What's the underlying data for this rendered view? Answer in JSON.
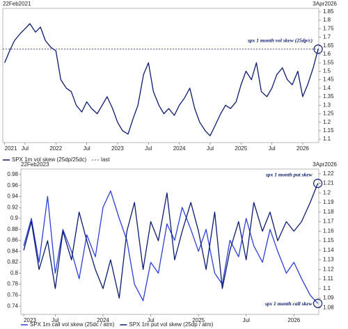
{
  "chart_data": [
    {
      "type": "line",
      "start_label": "22Feb2021",
      "end_label": "3Apr2026",
      "xlim": [
        2021.14,
        2026.26
      ],
      "xticks": [
        {
          "value": 2021.17,
          "label": "2021"
        },
        {
          "value": 2021.5,
          "label": "Jul"
        },
        2022,
        {
          "value": 2022.5,
          "label": "Jul"
        },
        2023,
        {
          "value": 2023.5,
          "label": "Jul"
        },
        2024,
        {
          "value": 2024.5,
          "label": "Jul"
        },
        2025,
        {
          "value": 2025.5,
          "label": "Jul"
        },
        2026
      ],
      "ylim": [
        1.08,
        1.87
      ],
      "yticks": [
        1.1,
        1.15,
        1.2,
        1.25,
        1.3,
        1.35,
        1.4,
        1.45,
        1.5,
        1.55,
        1.6,
        1.65,
        1.7,
        1.75,
        1.8,
        1.85
      ],
      "x": [
        2021.17,
        2021.25,
        2021.33,
        2021.42,
        2021.5,
        2021.58,
        2021.67,
        2021.75,
        2021.83,
        2021.92,
        2022.0,
        2022.08,
        2022.17,
        2022.25,
        2022.33,
        2022.42,
        2022.5,
        2022.58,
        2022.67,
        2022.75,
        2022.83,
        2022.92,
        2023.0,
        2023.08,
        2023.17,
        2023.25,
        2023.33,
        2023.42,
        2023.5,
        2023.58,
        2023.67,
        2023.75,
        2023.83,
        2023.92,
        2024.0,
        2024.08,
        2024.17,
        2024.25,
        2024.33,
        2024.42,
        2024.5,
        2024.58,
        2024.67,
        2024.75,
        2024.83,
        2024.92,
        2025.0,
        2025.08,
        2025.17,
        2025.25,
        2025.33,
        2025.42,
        2025.5,
        2025.58,
        2025.67,
        2025.75,
        2025.83,
        2025.92,
        2026.0,
        2026.08,
        2026.17,
        2026.25
      ],
      "series": [
        {
          "name": "SPX 1m vol skew (25dp/25dc)",
          "color": "#0a1a6e",
          "annotation": "spx 1 month vol skew (25dp/c)",
          "values": [
            1.55,
            1.62,
            1.68,
            1.72,
            1.75,
            1.78,
            1.73,
            1.76,
            1.68,
            1.64,
            1.62,
            1.45,
            1.4,
            1.38,
            1.3,
            1.26,
            1.32,
            1.28,
            1.25,
            1.3,
            1.35,
            1.28,
            1.2,
            1.15,
            1.13,
            1.22,
            1.3,
            1.48,
            1.55,
            1.38,
            1.3,
            1.25,
            1.28,
            1.24,
            1.3,
            1.34,
            1.4,
            1.28,
            1.2,
            1.15,
            1.12,
            1.18,
            1.25,
            1.3,
            1.28,
            1.32,
            1.42,
            1.5,
            1.45,
            1.55,
            1.38,
            1.35,
            1.4,
            1.48,
            1.52,
            1.45,
            1.42,
            1.5,
            1.35,
            1.42,
            1.52,
            1.63
          ]
        }
      ],
      "reference_line": {
        "name": "last",
        "value": 1.63,
        "color": "#0a1a6e"
      }
    },
    {
      "type": "line",
      "start_label": "22Feb2023",
      "end_label": "3Apr2026",
      "xlim": [
        2023.14,
        2026.26
      ],
      "xticks": [
        {
          "value": 2023.17,
          "label": "2023"
        },
        {
          "value": 2023.5,
          "label": "Jul"
        },
        2024,
        {
          "value": 2024.5,
          "label": "Jul"
        },
        2025,
        {
          "value": 2025.5,
          "label": "Jul"
        },
        2026
      ],
      "ylim": [
        0.725,
        0.99
      ],
      "yticks": [
        0.74,
        0.76,
        0.78,
        0.8,
        0.82,
        0.84,
        0.86,
        0.88,
        0.9,
        0.92,
        0.94,
        0.96,
        0.98
      ],
      "y2lim": [
        1.073,
        1.225
      ],
      "y2ticks": [
        1.08,
        1.09,
        1.1,
        1.11,
        1.12,
        1.13,
        1.14,
        1.15,
        1.16,
        1.17,
        1.18,
        1.19,
        1.2,
        1.21,
        1.22
      ],
      "x": [
        2023.17,
        2023.25,
        2023.33,
        2023.42,
        2023.5,
        2023.58,
        2023.67,
        2023.75,
        2023.83,
        2023.92,
        2024.0,
        2024.08,
        2024.17,
        2024.25,
        2024.33,
        2024.42,
        2024.5,
        2024.58,
        2024.67,
        2024.75,
        2024.83,
        2024.92,
        2025.0,
        2025.08,
        2025.17,
        2025.25,
        2025.33,
        2025.42,
        2025.5,
        2025.58,
        2025.67,
        2025.75,
        2025.83,
        2025.92,
        2026.0,
        2026.08,
        2026.17,
        2026.25
      ],
      "series": [
        {
          "name": "SPX 1m call vol skew (25dc / atm)",
          "color": "#2a3fd6",
          "axis": "y",
          "annotation": "spx 1 month call skew",
          "values": [
            0.85,
            0.9,
            0.82,
            0.94,
            0.8,
            0.88,
            0.84,
            0.79,
            0.87,
            0.83,
            0.92,
            0.95,
            0.9,
            0.86,
            0.78,
            0.75,
            0.82,
            0.8,
            0.89,
            0.86,
            0.92,
            0.88,
            0.84,
            0.88,
            0.8,
            0.78,
            0.86,
            0.83,
            0.9,
            0.85,
            0.82,
            0.88,
            0.84,
            0.8,
            0.82,
            0.79,
            0.76,
            0.745
          ]
        },
        {
          "name": "SPX 1m put vol skew (25dp / atm)",
          "color": "#0a1a6e",
          "axis": "y2",
          "annotation": "spx 1 month put skew",
          "values": [
            1.14,
            1.17,
            1.12,
            1.15,
            1.1,
            1.16,
            1.13,
            1.18,
            1.15,
            1.12,
            1.1,
            1.13,
            1.09,
            1.16,
            1.19,
            1.12,
            1.17,
            1.15,
            1.2,
            1.13,
            1.16,
            1.19,
            1.16,
            1.12,
            1.18,
            1.1,
            1.14,
            1.17,
            1.13,
            1.19,
            1.16,
            1.18,
            1.15,
            1.17,
            1.16,
            1.17,
            1.19,
            1.21
          ]
        }
      ]
    }
  ]
}
